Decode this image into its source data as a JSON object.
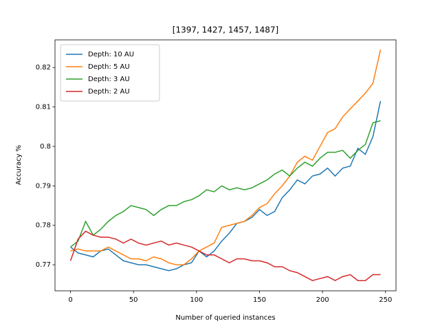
{
  "chart_data": {
    "type": "line",
    "title": "[1397, 1427, 1457, 1487]",
    "x_label": "Number of queried instances",
    "y_label": "Accuracy %",
    "legend": "upper left",
    "x": [
      0,
      6,
      12,
      18,
      24,
      30,
      36,
      42,
      48,
      54,
      60,
      66,
      72,
      78,
      84,
      90,
      96,
      102,
      108,
      114,
      120,
      126,
      132,
      138,
      144,
      150,
      156,
      162,
      168,
      174,
      180,
      186,
      192,
      198,
      204,
      210,
      216,
      222,
      228,
      234,
      240,
      246
    ],
    "series": [
      {
        "name": "Depth: 10 AU",
        "color": "#1f77b4",
        "values": [
          0.7745,
          0.773,
          0.7725,
          0.772,
          0.7735,
          0.774,
          0.7725,
          0.771,
          0.7705,
          0.77,
          0.77,
          0.7695,
          0.769,
          0.7685,
          0.769,
          0.77,
          0.7705,
          0.7735,
          0.772,
          0.7735,
          0.776,
          0.778,
          0.7805,
          0.781,
          0.782,
          0.784,
          0.7825,
          0.7835,
          0.787,
          0.789,
          0.7915,
          0.7905,
          0.7925,
          0.793,
          0.7945,
          0.7925,
          0.7945,
          0.795,
          0.7995,
          0.798,
          0.8025,
          0.8115
        ]
      },
      {
        "name": "Depth: 5 AU",
        "color": "#ff7f0e",
        "values": [
          0.7735,
          0.774,
          0.7735,
          0.7735,
          0.7735,
          0.7745,
          0.7735,
          0.7725,
          0.7715,
          0.7715,
          0.771,
          0.772,
          0.7715,
          0.7705,
          0.77,
          0.77,
          0.7715,
          0.7735,
          0.7745,
          0.7755,
          0.7795,
          0.78,
          0.7805,
          0.781,
          0.7825,
          0.7845,
          0.7855,
          0.788,
          0.79,
          0.7925,
          0.796,
          0.7975,
          0.7965,
          0.8,
          0.8035,
          0.8045,
          0.8075,
          0.8095,
          0.8115,
          0.8135,
          0.816,
          0.8245
        ]
      },
      {
        "name": "Depth: 3 AU",
        "color": "#2ca02c",
        "values": [
          0.7745,
          0.776,
          0.781,
          0.7775,
          0.779,
          0.781,
          0.7825,
          0.7835,
          0.785,
          0.7845,
          0.784,
          0.7825,
          0.784,
          0.785,
          0.785,
          0.786,
          0.7865,
          0.7875,
          0.789,
          0.7885,
          0.79,
          0.789,
          0.7895,
          0.789,
          0.7895,
          0.7905,
          0.7915,
          0.793,
          0.794,
          0.7925,
          0.7945,
          0.796,
          0.795,
          0.797,
          0.7985,
          0.7985,
          0.799,
          0.797,
          0.799,
          0.8005,
          0.806,
          0.8065
        ]
      },
      {
        "name": "Depth: 2 AU",
        "color": "#d62728",
        "values": [
          0.771,
          0.7765,
          0.7785,
          0.7775,
          0.777,
          0.777,
          0.7765,
          0.7755,
          0.7765,
          0.7755,
          0.775,
          0.7755,
          0.776,
          0.775,
          0.7755,
          0.775,
          0.7745,
          0.7735,
          0.7725,
          0.7725,
          0.7715,
          0.7705,
          0.7715,
          0.7715,
          0.771,
          0.771,
          0.7705,
          0.7695,
          0.7695,
          0.7685,
          0.768,
          0.767,
          0.766,
          0.7665,
          0.767,
          0.766,
          0.767,
          0.7675,
          0.766,
          0.766,
          0.7675,
          0.7675
        ]
      }
    ],
    "xlim": [
      -12.3,
      258.3
    ],
    "xticks": [
      0,
      50,
      100,
      150,
      200,
      250
    ],
    "ylim": [
      0.7634,
      0.827
    ],
    "yticks": [
      0.77,
      0.78,
      0.79,
      0.8,
      0.81,
      0.82
    ]
  }
}
